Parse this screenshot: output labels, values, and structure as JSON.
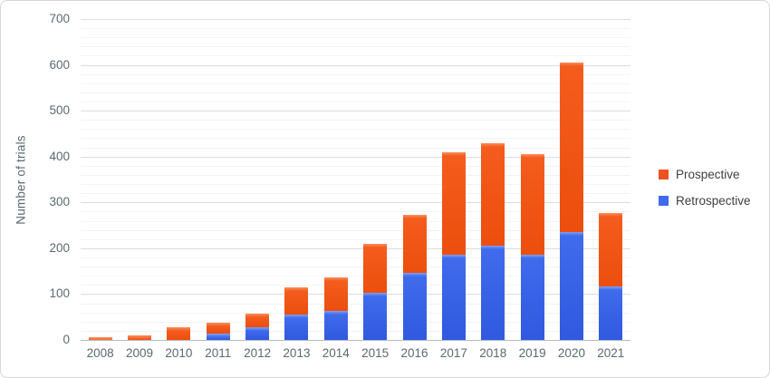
{
  "figure": {
    "ylabel": "Number of trials",
    "legend": [
      {
        "id": "prospective",
        "label": "Prospective",
        "color": "#ee5220"
      },
      {
        "id": "retrospective",
        "label": "Retrospective",
        "color": "#3f6bec"
      }
    ]
  },
  "chart_data": {
    "type": "bar",
    "stacked": true,
    "title": "",
    "xlabel": "",
    "ylabel": "Number of trials",
    "ylim": [
      0,
      700
    ],
    "yticks": [
      0,
      100,
      200,
      300,
      400,
      500,
      600,
      700
    ],
    "minor_grid_step": 20,
    "grid": true,
    "legend_position": "right",
    "categories": [
      "2008",
      "2009",
      "2010",
      "2011",
      "2012",
      "2013",
      "2014",
      "2015",
      "2016",
      "2017",
      "2018",
      "2019",
      "2020",
      "2021"
    ],
    "series": [
      {
        "name": "Retrospective",
        "color": "#3f6bec",
        "values": [
          0,
          0,
          0,
          13,
          27,
          55,
          63,
          102,
          146,
          186,
          206,
          185,
          235,
          117
        ]
      },
      {
        "name": "Prospective",
        "color": "#ee5220",
        "values": [
          5,
          10,
          27,
          25,
          30,
          60,
          74,
          108,
          127,
          223,
          224,
          220,
          371,
          159
        ]
      }
    ],
    "totals": [
      5,
      10,
      27,
      38,
      57,
      115,
      137,
      210,
      273,
      409,
      430,
      405,
      606,
      276
    ]
  }
}
